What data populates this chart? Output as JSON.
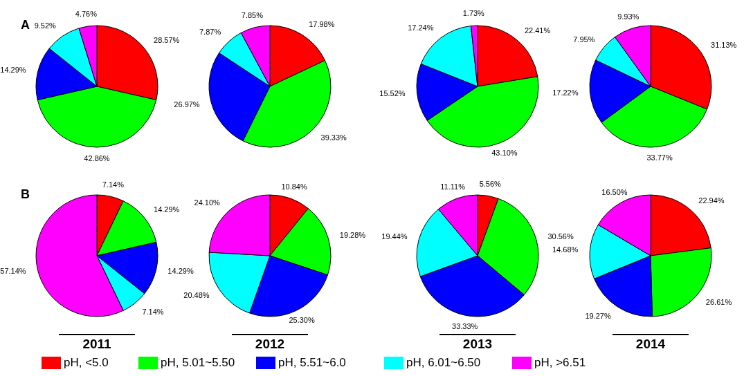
{
  "chart_data": [
    {
      "type": "pie",
      "annotations": [
        "A"
      ],
      "categories": [
        "pH, <5.0",
        "pH, 5.01~5.50",
        "pH, 5.51~6.0",
        "pH, 6.01~6.50",
        "pH, >6.51"
      ],
      "values": [
        28.57,
        42.86,
        14.29,
        9.52,
        4.76
      ],
      "value_labels": [
        "28.57%",
        "42.86%",
        "14.29%",
        "9.52%",
        "4.76%"
      ],
      "colors": [
        "#ff0000",
        "#00ff00",
        "#0000ff",
        "#00ffff",
        "#ff00ff"
      ],
      "legend": "bottom"
    },
    {
      "type": "pie",
      "categories": [
        null,
        null,
        null,
        null,
        null
      ],
      "values": [
        17.98,
        39.33,
        26.97,
        7.87,
        7.85
      ],
      "value_labels": [
        "17.98%",
        "39.33%",
        "26.97%",
        "7.87%",
        "7.85%"
      ],
      "colors": [
        "#ff0000",
        "#00ff00",
        "#0000ff",
        "#00ffff",
        "#ff00ff"
      ]
    },
    {
      "type": "pie",
      "categories": [
        null,
        null,
        null,
        null,
        null
      ],
      "values": [
        22.41,
        43.1,
        15.52,
        17.24,
        1.73
      ],
      "value_labels": [
        "22.41%",
        "43.10%",
        "15.52%",
        "17.24%",
        "1.73%"
      ],
      "colors": [
        "#ff0000",
        "#00ff00",
        "#0000ff",
        "#00ffff",
        "#ff00ff"
      ]
    },
    {
      "type": "pie",
      "categories": [
        null,
        null,
        null,
        null,
        null
      ],
      "values": [
        31.13,
        33.77,
        17.22,
        7.95,
        9.93
      ],
      "value_labels": [
        "31.13%",
        "33.77%",
        "17.22%",
        "7.95%",
        "9.93%"
      ],
      "colors": [
        "#ff0000",
        "#00ff00",
        "#0000ff",
        "#00ffff",
        "#ff00ff"
      ]
    },
    {
      "type": "pie",
      "annotations": [
        "B"
      ],
      "xlabel": "2011",
      "categories": [
        null,
        null,
        null,
        null,
        null
      ],
      "values": [
        7.14,
        14.29,
        14.29,
        7.14,
        57.14
      ],
      "value_labels": [
        "7.14%",
        "14.29%",
        "14.29%",
        "7.14%",
        "57.14%"
      ],
      "colors": [
        "#ff0000",
        "#00ff00",
        "#0000ff",
        "#00ffff",
        "#ff00ff"
      ]
    },
    {
      "type": "pie",
      "xlabel": "2012",
      "categories": [
        null,
        null,
        null,
        null,
        null
      ],
      "values": [
        10.84,
        19.28,
        25.3,
        20.48,
        24.1
      ],
      "value_labels": [
        "10.84%",
        "19.28%",
        "25.30%",
        "20.48%",
        "24.10%"
      ],
      "colors": [
        "#ff0000",
        "#00ff00",
        "#0000ff",
        "#00ffff",
        "#ff00ff"
      ]
    },
    {
      "type": "pie",
      "xlabel": "2013",
      "categories": [
        null,
        null,
        null,
        null,
        null
      ],
      "values": [
        5.56,
        30.56,
        33.33,
        19.44,
        11.11
      ],
      "value_labels": [
        "5.56%",
        "30.56%",
        "33.33%",
        "19.44%",
        "11.11%"
      ],
      "colors": [
        "#ff0000",
        "#00ff00",
        "#0000ff",
        "#00ffff",
        "#ff00ff"
      ]
    },
    {
      "type": "pie",
      "xlabel": "2014",
      "categories": [
        null,
        null,
        null,
        null,
        null
      ],
      "values": [
        22.94,
        26.61,
        19.27,
        14.68,
        16.5
      ],
      "value_labels": [
        "22.94%",
        "26.61%",
        "19.27%",
        "14.68%",
        "16.50%"
      ],
      "colors": [
        "#ff0000",
        "#00ff00",
        "#0000ff",
        "#00ffff",
        "#ff00ff"
      ]
    }
  ]
}
